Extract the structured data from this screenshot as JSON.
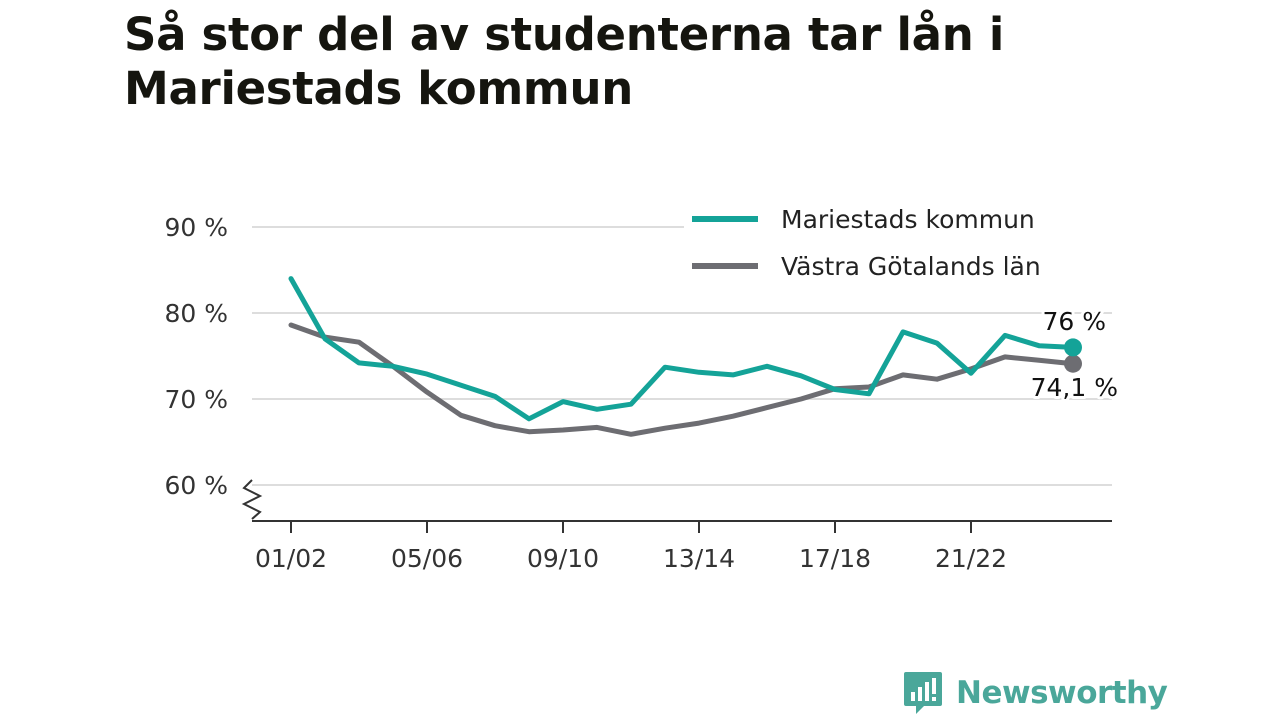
{
  "title": "Så stor del av studenterna tar lån i Mariestads kommun",
  "brand": {
    "name": "Newsworthy",
    "icon": "newsworthy-logo-icon"
  },
  "colors": {
    "series1": "#14a398",
    "series2": "#6d6d72",
    "grid": "#dddddd",
    "axis": "#333333",
    "brand": "#4aa79a"
  },
  "chart_data": {
    "type": "line",
    "categories": [
      "01/02",
      "02/03",
      "03/04",
      "04/05",
      "05/06",
      "06/07",
      "07/08",
      "08/09",
      "09/10",
      "10/11",
      "11/12",
      "12/13",
      "13/14",
      "14/15",
      "15/16",
      "16/17",
      "17/18",
      "18/19",
      "19/20",
      "20/21",
      "21/22",
      "22/23",
      "23/24",
      "24/25"
    ],
    "tick_labels": [
      "01/02",
      "05/06",
      "09/10",
      "13/14",
      "17/18",
      "21/22"
    ],
    "tick_indices": [
      0,
      4,
      8,
      12,
      16,
      20
    ],
    "y_ticks": [
      60,
      70,
      80,
      90
    ],
    "y_tick_labels": [
      "60 %",
      "70 %",
      "80 %",
      "90 %"
    ],
    "ylim": [
      56,
      91
    ],
    "axis_break": true,
    "legend_position": "top-right",
    "series": [
      {
        "name": "Mariestads kommun",
        "color": "#14a398",
        "end_label": "76 %",
        "values": [
          84.0,
          77.0,
          74.2,
          73.8,
          72.9,
          71.6,
          70.3,
          67.7,
          69.7,
          68.8,
          69.4,
          73.7,
          73.1,
          72.8,
          73.8,
          72.7,
          71.1,
          70.6,
          77.8,
          76.5,
          73.0,
          77.4,
          76.2,
          76.0
        ]
      },
      {
        "name": "Västra Götalands län",
        "color": "#6d6d72",
        "end_label": "74,1 %",
        "values": [
          78.6,
          77.2,
          76.6,
          73.8,
          70.8,
          68.1,
          66.9,
          66.2,
          66.4,
          66.7,
          65.9,
          66.6,
          67.2,
          68.0,
          69.0,
          70.0,
          71.2,
          71.4,
          72.8,
          72.3,
          73.5,
          74.9,
          74.5,
          74.1
        ]
      }
    ]
  }
}
